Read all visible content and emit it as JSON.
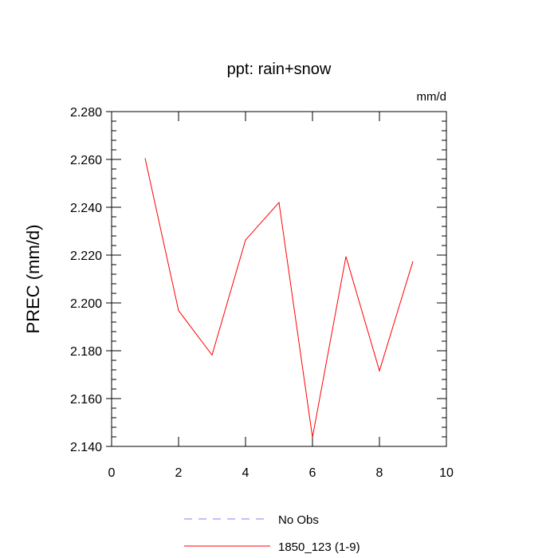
{
  "chart_data": {
    "type": "line",
    "title": "ppt: rain+snow",
    "units_label": "mm/d",
    "xlabel": "",
    "ylabel": "PREC  (mm/d)",
    "xlim": [
      0,
      10
    ],
    "ylim": [
      2.14,
      2.28
    ],
    "x_ticks": [
      "0",
      "2",
      "4",
      "6",
      "8",
      "10"
    ],
    "y_ticks": [
      "2.140",
      "2.160",
      "2.180",
      "2.200",
      "2.220",
      "2.240",
      "2.260",
      "2.280"
    ],
    "grid": false,
    "legend_position": "bottom",
    "series": [
      {
        "name": "1850_123 (1-9)",
        "color": "#ff0000",
        "style": "solid",
        "x": [
          1,
          2,
          3,
          4,
          5,
          6,
          7,
          8,
          9
        ],
        "y": [
          2.2605,
          2.1968,
          2.1782,
          2.2263,
          2.242,
          2.1438,
          2.2194,
          2.1716,
          2.2174
        ]
      }
    ],
    "legend": [
      {
        "label": "No Obs",
        "color": "#8080ff",
        "style": "dashed"
      },
      {
        "label": "1850_123 (1-9)",
        "color": "#ff0000",
        "style": "solid"
      }
    ]
  }
}
